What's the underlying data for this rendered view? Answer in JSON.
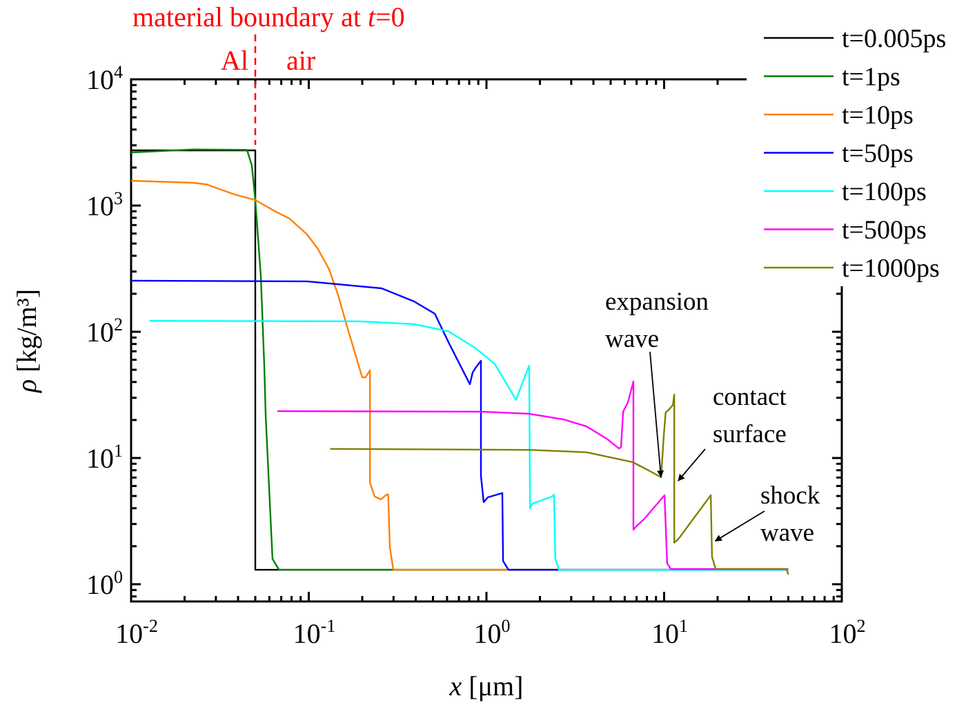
{
  "chart_data": {
    "type": "line",
    "xlabel": "x [μm]",
    "ylabel": "ρ [kg/m³]",
    "xscale": "log",
    "yscale": "log",
    "xlim": [
      0.01,
      100
    ],
    "ylim": [
      0.73,
      10000
    ],
    "grid": false,
    "legend_position": "top-right, outside",
    "x_ticks": [
      {
        "base": "10",
        "exp": "-2",
        "value": 0.01
      },
      {
        "base": "10",
        "exp": "-1",
        "value": 0.1
      },
      {
        "base": "10",
        "exp": "0",
        "value": 1
      },
      {
        "base": "10",
        "exp": "1",
        "value": 10
      },
      {
        "base": "10",
        "exp": "2",
        "value": 100
      }
    ],
    "y_ticks": [
      {
        "base": "10",
        "exp": "0",
        "value": 1
      },
      {
        "base": "10",
        "exp": "1",
        "value": 10
      },
      {
        "base": "10",
        "exp": "2",
        "value": 100
      },
      {
        "base": "10",
        "exp": "3",
        "value": 1000
      },
      {
        "base": "10",
        "exp": "4",
        "value": 10000
      }
    ],
    "series": [
      {
        "name": "t=0.005ps",
        "color": "#000000",
        "x": [
          0.01,
          0.05,
          0.05,
          0.07,
          50
        ],
        "y": [
          2736,
          2736,
          1.3,
          1.3,
          1.3
        ]
      },
      {
        "name": "t=1ps",
        "color": "#008000",
        "x": [
          0.01,
          0.0224,
          0.0449,
          0.0478,
          0.05,
          0.0537,
          0.0562,
          0.0572,
          0.0625,
          0.068,
          50
        ],
        "y": [
          2630,
          2780,
          2760,
          2075,
          1106,
          277,
          52,
          22,
          1.59,
          1.3,
          1.3
        ]
      },
      {
        "name": "t=10ps",
        "color": "#ff8000",
        "x": [
          0.01,
          0.0224,
          0.0267,
          0.0383,
          0.05,
          0.0655,
          0.078,
          0.0978,
          0.112,
          0.13,
          0.146,
          0.164,
          0.186,
          0.2,
          0.209,
          0.221,
          0.221,
          0.235,
          0.255,
          0.274,
          0.28,
          0.286,
          0.299,
          50
        ],
        "y": [
          1573,
          1515,
          1467,
          1223,
          1106,
          891,
          787,
          590,
          458,
          314,
          197,
          111,
          61,
          43.6,
          43.6,
          49.5,
          6.36,
          4.94,
          4.7,
          5.13,
          5.13,
          1.97,
          1.3,
          1.3
        ]
      },
      {
        "name": "t=50ps",
        "color": "#0000ff",
        "x": [
          0.01,
          0.098,
          0.257,
          0.391,
          0.512,
          0.622,
          0.807,
          0.836,
          0.87,
          0.931,
          0.931,
          0.965,
          1.018,
          1.228,
          1.24,
          1.33,
          50
        ],
        "y": [
          254,
          251,
          221,
          174,
          139,
          78.7,
          38.4,
          47.6,
          52,
          58.9,
          7.2,
          4.47,
          4.88,
          5.27,
          1.53,
          1.3,
          1.3
        ]
      },
      {
        "name": "t=100ps",
        "color": "#00ffff",
        "x": [
          0.0127,
          0.19,
          0.39,
          0.61,
          0.87,
          1.11,
          1.47,
          1.54,
          1.74,
          1.76,
          1.82,
          2.34,
          2.4,
          2.44,
          2.56,
          50
        ],
        "y": [
          122,
          121,
          115,
          101,
          74,
          56,
          28.8,
          34.7,
          54,
          4.0,
          4.36,
          4.94,
          5.13,
          1.59,
          1.3,
          1.3
        ]
      },
      {
        "name": "t=500ps",
        "color": "#ff00ff",
        "x": [
          0.0666,
          0.93,
          1.74,
          2.72,
          3.66,
          4.79,
          5.57,
          5.72,
          5.88,
          6.26,
          6.72,
          6.72,
          7.03,
          7.68,
          10.05,
          10.4,
          10.9,
          50
        ],
        "y": [
          23.5,
          23.3,
          22.4,
          20.2,
          17.8,
          14.1,
          11.9,
          12.2,
          23.3,
          27.7,
          40.4,
          2.7,
          2.91,
          3.26,
          5.07,
          1.46,
          1.32,
          1.32
        ]
      },
      {
        "name": "t=1000ps",
        "color": "#808000",
        "x": [
          0.132,
          1.74,
          3.66,
          6.65,
          8.18,
          9.61,
          9.96,
          10.2,
          10.7,
          11.2,
          11.4,
          11.4,
          12.0,
          18.3,
          18.6,
          19.5,
          48.9,
          50
        ],
        "y": [
          11.8,
          11.6,
          11.1,
          9.27,
          7.97,
          7.03,
          15.3,
          22.9,
          24.4,
          26.3,
          31.8,
          2.13,
          2.27,
          5.07,
          1.65,
          1.32,
          1.32,
          1.19
        ]
      }
    ],
    "annotations": {
      "boundary": {
        "text": "material boundary at t=0",
        "x": 0.05,
        "color": "#ff0000"
      },
      "al_label": "Al",
      "air_label": "air",
      "expansion_wave": {
        "lines": [
          "expansion",
          "wave"
        ],
        "arrow_to": {
          "x": 9.6,
          "y": 7.1
        }
      },
      "contact_surface": {
        "lines": [
          "contact",
          "surface"
        ],
        "arrow_to": {
          "x": 12.0,
          "y": 6.6
        }
      },
      "shock_wave": {
        "lines": [
          "shock",
          "wave"
        ],
        "arrow_to": {
          "x": 19.4,
          "y": 2.2
        }
      }
    }
  }
}
